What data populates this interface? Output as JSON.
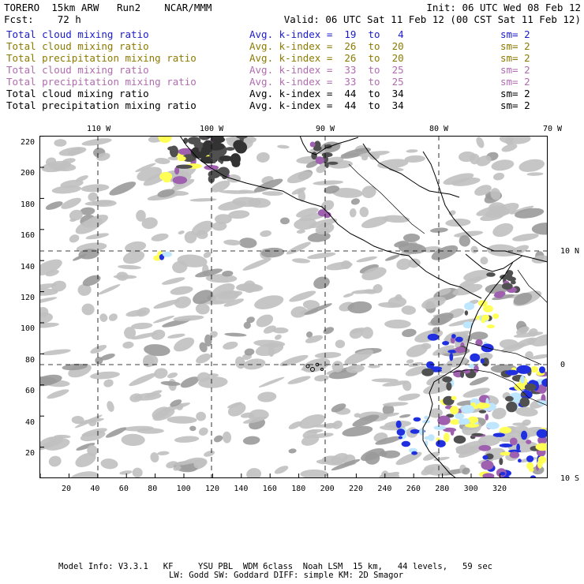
{
  "header": {
    "left_line1": "TORERO  15km ARW   Run2    NCAR/MMM",
    "right_line1": "Init: 06 UTC Wed 08 Feb 12",
    "left_line2": "Fcst:    72 h",
    "right_line2": "Valid: 06 UTC Sat 11 Feb 12 (00 CST Sat 11 Feb 12)"
  },
  "legend": [
    {
      "field": "Total cloud mixing ratio",
      "index": "Avg. k-index =  19  to   4",
      "sm": "sm= 2",
      "color": "#1a1acc"
    },
    {
      "field": "Total cloud mixing ratio",
      "index": "Avg. k-index =  26  to  20",
      "sm": "sm= 2",
      "color": "#8c7a00"
    },
    {
      "field": "Total precipitation mixing ratio",
      "index": "Avg. k-index =  26  to  20",
      "sm": "sm= 2",
      "color": "#8c7a00"
    },
    {
      "field": "Total cloud mixing ratio",
      "index": "Avg. k-index =  33  to  25",
      "sm": "sm= 2",
      "color": "#b06cb0"
    },
    {
      "field": "Total precipitation mixing ratio",
      "index": "Avg. k-index =  33  to  25",
      "sm": "sm= 2",
      "color": "#b06cb0"
    },
    {
      "field": "Total cloud mixing ratio",
      "index": "Avg. k-index =  44  to  34",
      "sm": "sm= 2",
      "color": "#000000"
    },
    {
      "field": "Total precipitation mixing ratio",
      "index": "Avg. k-index =  44  to  34",
      "sm": "sm= 2",
      "color": "#000000"
    }
  ],
  "map": {
    "lon_labels": [
      "110 W",
      "100 W",
      "90 W",
      "80 W",
      "70 W"
    ],
    "lat_labels": [
      "10 N",
      "0",
      "10 S"
    ],
    "x_ticks": [
      "20",
      "40",
      "60",
      "80",
      "100",
      "120",
      "140",
      "160",
      "180",
      "200",
      "220",
      "240",
      "260",
      "280",
      "300",
      "320"
    ],
    "y_ticks": [
      "220",
      "200",
      "180",
      "160",
      "140",
      "120",
      "100",
      "80",
      "60",
      "40",
      "20"
    ],
    "colors": {
      "light_gray": "#c0c0c0",
      "mid_gray": "#9a9a9a",
      "dark_gray": "#505050",
      "purple": "#a060b0",
      "yellow": "#ffff55",
      "blue": "#2030e0",
      "light_blue": "#bfe6ff",
      "coast": "#000000"
    }
  },
  "footer": {
    "line1": "Model Info: V3.3.1   KF     YSU PBL  WDM 6class  Noah LSM  15 km,   44 levels,   59 sec",
    "line2": "LW: Godd SW: Goddard DIFF: simple KM: 2D Smagor"
  }
}
